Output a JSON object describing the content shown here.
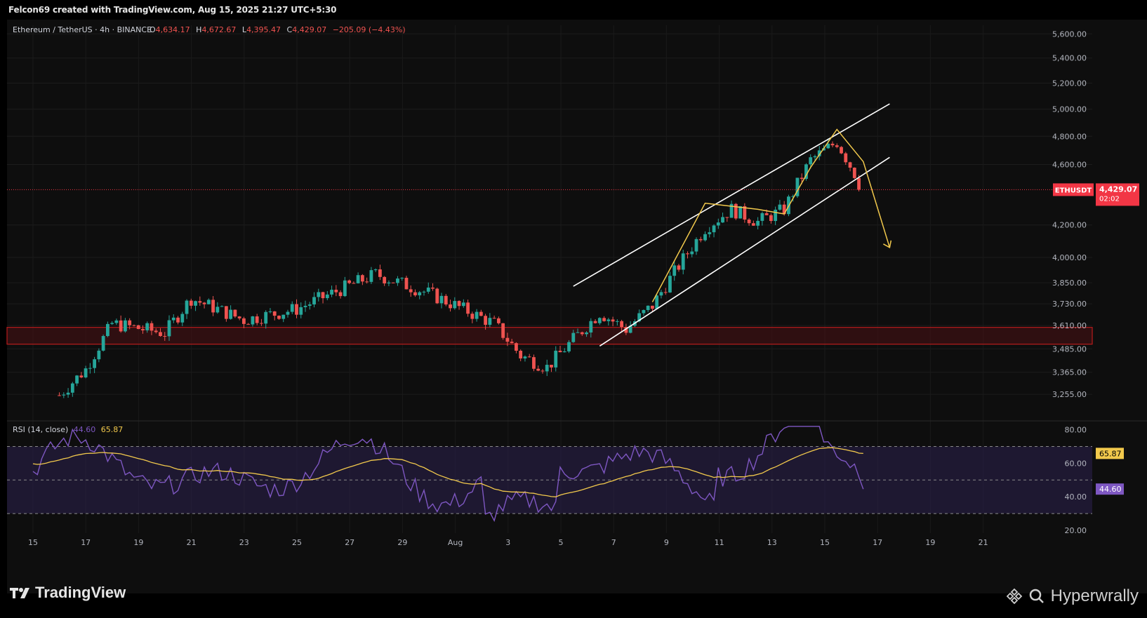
{
  "header": {
    "attribution": "Felcon69 created with TradingView.com, Aug 15, 2025 21:27 UTC+5:30"
  },
  "footer": {
    "logo_text": "TradingView",
    "brand_text": "Hyperwrally"
  },
  "legend": {
    "symbol": "Ethereum / TetherUS · 4h · BINANCE",
    "o_label": "O",
    "o_value": "4,634.17",
    "h_label": "H",
    "h_value": "4,672.67",
    "l_label": "L",
    "l_value": "4,395.47",
    "c_label": "C",
    "c_value": "4,429.07",
    "change": "−205.09 (−4.43%)"
  },
  "price_tag": {
    "symbol": "ETHUSDT",
    "price": "4,429.07",
    "countdown": "02:02"
  },
  "rsi": {
    "label": "RSI (14, close)",
    "rsi_value": "44.60",
    "ma_value": "65.87",
    "tick_labels": [
      "80.00",
      "60.00",
      "40.00",
      "20.00"
    ],
    "tag_ma": "65.87",
    "tag_rsi": "44.60"
  },
  "colors": {
    "up": "#26a69a",
    "down": "#ef5350",
    "channel": "#ffffff",
    "path": "#f2c94c",
    "zone": "#b71c1c",
    "rsi_line": "#7e57c2",
    "rsi_ma": "#f2c94c",
    "price_tag": "#f23645"
  },
  "chart_data": {
    "type": "candlestick",
    "symbol": "ETHUSDT",
    "timeframe": "4h",
    "scale": "log",
    "y_ticks": [
      5600,
      5400,
      5200,
      5000,
      4800,
      4600,
      4200,
      4000,
      3850,
      3730,
      3610,
      3485,
      3365,
      3255
    ],
    "y_tick_labels": [
      "5,600.00",
      "5,400.00",
      "5,200.00",
      "5,000.00",
      "4,800.00",
      "4,600.00",
      "4,200.00",
      "4,000.00",
      "3,850.00",
      "3,730.00",
      "3,610.00",
      "3,485.00",
      "3,365.00",
      "3,255.00"
    ],
    "x_ticks": [
      "15",
      "17",
      "19",
      "21",
      "23",
      "25",
      "27",
      "29",
      "Aug",
      "3",
      "5",
      "7",
      "9",
      "11",
      "13",
      "15",
      "17",
      "19",
      "21"
    ],
    "support_zone": [
      3510,
      3600
    ],
    "last_price": 4429.07,
    "key_closes": [
      {
        "date": "Jul 16",
        "close": 3250
      },
      {
        "date": "Jul 17",
        "close": 3380
      },
      {
        "date": "Jul 18",
        "close": 3620
      },
      {
        "date": "Jul 20",
        "close": 3570
      },
      {
        "date": "Jul 21",
        "close": 3760
      },
      {
        "date": "Jul 23",
        "close": 3640
      },
      {
        "date": "Jul 25",
        "close": 3700
      },
      {
        "date": "Jul 28",
        "close": 3900
      },
      {
        "date": "Jul 30",
        "close": 3790
      },
      {
        "date": "Aug 1",
        "close": 3620
      },
      {
        "date": "Aug 2",
        "close": 3450
      },
      {
        "date": "Aug 3",
        "close": 3390
      },
      {
        "date": "Aug 5",
        "close": 3680
      },
      {
        "date": "Aug 6",
        "close": 3590
      },
      {
        "date": "Aug 7",
        "close": 3720
      },
      {
        "date": "Aug 8",
        "close": 3950
      },
      {
        "date": "Aug 9",
        "close": 4180
      },
      {
        "date": "Aug 10",
        "close": 4300
      },
      {
        "date": "Aug 11",
        "close": 4220
      },
      {
        "date": "Aug 12",
        "close": 4300
      },
      {
        "date": "Aug 13",
        "close": 4630
      },
      {
        "date": "Aug 14",
        "close": 4760
      },
      {
        "date": "Aug 15",
        "close": 4429.07
      }
    ],
    "rsi_ticks": [
      80,
      60,
      40,
      20
    ],
    "rsi_bands": [
      70,
      50,
      30
    ],
    "rsi_last": 44.6,
    "rsi_ma_last": 65.87
  }
}
